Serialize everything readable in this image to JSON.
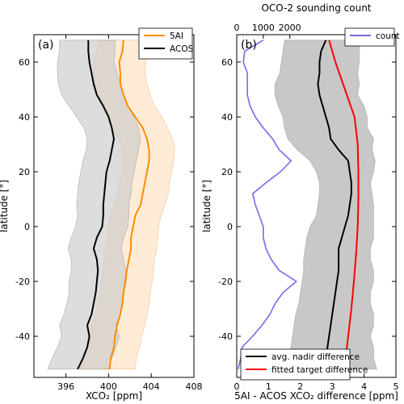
{
  "chart_data": [
    {
      "panel_label": "(a)",
      "type": "line",
      "xlabel": "XCO₂ [ppm]",
      "ylabel": "latitude [°]",
      "xlim": [
        393,
        408
      ],
      "ylim": [
        -55,
        70
      ],
      "xticks": [
        396,
        400,
        404,
        408
      ],
      "yticks": [
        60,
        40,
        20,
        0,
        -20,
        -40
      ],
      "grid": false,
      "legend_position": "top-right",
      "latitude": [
        -52,
        -48,
        -44,
        -40,
        -36,
        -32,
        -28,
        -24,
        -20,
        -16,
        -12,
        -8,
        -4,
        0,
        4,
        8,
        12,
        16,
        20,
        24,
        28,
        32,
        36,
        40,
        44,
        48,
        52,
        56,
        60,
        64,
        68
      ],
      "series": [
        {
          "name": "5AI",
          "color": "#ff8c00",
          "band_color": "#ffe0bf",
          "mean": [
            400.1,
            400.2,
            400.5,
            400.6,
            400.8,
            401.1,
            401.3,
            401.4,
            401.6,
            401.7,
            401.9,
            402.1,
            402.1,
            402.3,
            402.5,
            403.0,
            403.2,
            403.4,
            403.6,
            403.8,
            403.8,
            403.6,
            403.2,
            402.5,
            401.8,
            401.4,
            401.1,
            401.1,
            401.0,
            401.3,
            401.4
          ],
          "lower": [
            397.4,
            397.6,
            398.0,
            398.4,
            398.4,
            398.8,
            399.0,
            399.2,
            399.4,
            399.5,
            399.6,
            399.7,
            399.9,
            400.0,
            400.2,
            400.6,
            400.9,
            401.0,
            401.3,
            401.4,
            401.3,
            401.0,
            400.3,
            399.9,
            399.3,
            398.9,
            398.7,
            398.6,
            398.6,
            398.9,
            399.1
          ],
          "upper": [
            402.5,
            402.6,
            402.9,
            403.1,
            403.4,
            403.6,
            403.8,
            403.9,
            404.1,
            404.2,
            404.3,
            404.5,
            404.6,
            404.7,
            404.9,
            405.3,
            405.6,
            405.7,
            405.9,
            406.1,
            406.2,
            406.0,
            405.5,
            405.0,
            404.3,
            403.9,
            403.6,
            403.4,
            403.5,
            403.6,
            403.8
          ]
        },
        {
          "name": "ACOS",
          "color": "#000000",
          "band_color": "#c8c8c8",
          "mean": [
            397.1,
            397.6,
            398.0,
            398.2,
            398.0,
            398.4,
            398.6,
            398.8,
            398.9,
            399.0,
            398.9,
            398.6,
            398.9,
            399.4,
            399.5,
            399.5,
            399.6,
            399.7,
            399.8,
            400.1,
            400.3,
            400.5,
            400.3,
            400.0,
            399.5,
            398.9,
            398.6,
            398.4,
            398.2,
            398.1,
            398.1
          ],
          "lower": [
            394.3,
            394.7,
            395.2,
            395.6,
            395.4,
            395.8,
            396.1,
            396.3,
            396.3,
            396.5,
            396.5,
            396.2,
            396.5,
            396.9,
            397.1,
            397.0,
            397.1,
            397.2,
            397.4,
            397.6,
            397.9,
            398.0,
            397.7,
            397.0,
            396.3,
            395.6,
            395.3,
            395.2,
            395.2,
            395.4,
            395.4
          ],
          "upper": [
            400.0,
            400.3,
            400.7,
            401.0,
            400.7,
            401.1,
            401.3,
            401.4,
            401.5,
            401.6,
            401.4,
            401.2,
            401.4,
            401.8,
            401.9,
            401.9,
            402.1,
            402.2,
            402.4,
            402.6,
            402.8,
            403.0,
            402.8,
            402.4,
            401.8,
            401.4,
            401.1,
            400.8,
            400.5,
            400.6,
            400.6
          ]
        }
      ]
    },
    {
      "panel_label": "(b)",
      "type": "line",
      "xlabel": "5AI - ACOS XCO₂ difference [ppm]",
      "ylabel": "latitude [°]",
      "top_xlabel": "OCO-2 sounding count",
      "xlim": [
        0,
        5
      ],
      "ylim": [
        -55,
        70
      ],
      "xticks": [
        0,
        1,
        2,
        3,
        4,
        5
      ],
      "top_xlim": [
        0,
        6000
      ],
      "top_xticks": [
        0,
        1000,
        2000
      ],
      "yticks": [
        60,
        40,
        20,
        0,
        -20,
        -40
      ],
      "grid": false,
      "legend_position": "top-right and bottom-right",
      "latitude": [
        -52,
        -48,
        -44,
        -40,
        -36,
        -32,
        -28,
        -24,
        -20,
        -16,
        -12,
        -8,
        -4,
        0,
        4,
        8,
        12,
        16,
        20,
        24,
        28,
        32,
        36,
        40,
        44,
        48,
        52,
        56,
        60,
        64,
        68
      ],
      "series": [
        {
          "name": "avg. nadir difference",
          "color": "#000000",
          "band_color": "#c8c8c8",
          "mean": [
            2.8,
            2.8,
            2.85,
            2.9,
            2.95,
            3.0,
            3.05,
            3.1,
            3.15,
            3.2,
            3.2,
            3.2,
            3.3,
            3.4,
            3.5,
            3.55,
            3.6,
            3.6,
            3.55,
            3.5,
            3.2,
            2.95,
            2.9,
            2.8,
            2.7,
            2.6,
            2.55,
            2.6,
            2.6,
            2.65,
            2.8
          ],
          "lower": [
            1.6,
            1.6,
            1.7,
            1.75,
            1.8,
            1.85,
            1.95,
            2.0,
            2.05,
            2.1,
            2.1,
            2.15,
            2.2,
            2.3,
            2.5,
            2.55,
            2.6,
            2.6,
            2.5,
            2.3,
            1.9,
            1.6,
            1.5,
            1.45,
            1.3,
            1.2,
            1.2,
            1.35,
            1.4,
            1.45,
            1.5
          ],
          "upper": [
            4.4,
            4.3,
            4.3,
            4.2,
            4.3,
            4.3,
            4.2,
            4.2,
            4.3,
            4.3,
            4.2,
            4.2,
            4.3,
            4.3,
            4.3,
            4.3,
            4.25,
            4.2,
            4.3,
            4.35,
            4.25,
            4.3,
            4.1,
            4.1,
            4.0,
            3.8,
            3.85,
            3.8,
            3.85,
            3.85,
            3.9
          ]
        },
        {
          "name": "fitted target difference",
          "color": "#ff0000",
          "lat": [
            -45,
            -40,
            -30,
            -20,
            -10,
            0,
            10,
            20,
            30,
            40,
            50,
            60,
            68
          ],
          "values": [
            3.45,
            3.5,
            3.6,
            3.68,
            3.75,
            3.8,
            3.82,
            3.82,
            3.8,
            3.7,
            3.4,
            3.1,
            2.9
          ]
        },
        {
          "name": "count",
          "axis": "top",
          "color": "#7b68ee",
          "values": [
            50,
            150,
            200,
            600,
            950,
            1250,
            1450,
            1750,
            2250,
            1600,
            1300,
            1100,
            1000,
            1000,
            850,
            700,
            600,
            1100,
            1650,
            2050,
            1600,
            1350,
            1000,
            700,
            500,
            400,
            400,
            400,
            250,
            300,
            1000
          ]
        }
      ]
    }
  ]
}
